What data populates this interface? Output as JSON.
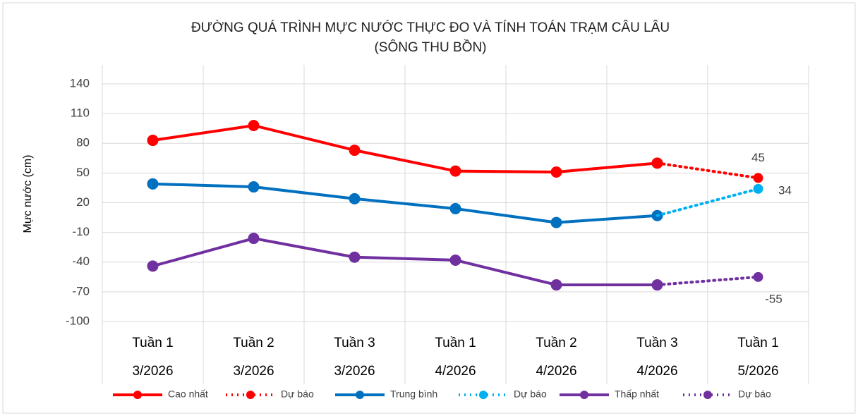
{
  "chart_data": {
    "type": "line",
    "title": "ĐƯỜNG QUÁ TRÌNH MỰC NƯỚC THỰC ĐO VÀ TÍNH TOÁN TRẠM CÂU LÂU",
    "subtitle": "(SÔNG THU BỒN)",
    "y_label": "Mực nước (cm)",
    "categories": [
      [
        "Tuần 1",
        "3/2026"
      ],
      [
        "Tuần 2",
        "3/2026"
      ],
      [
        "Tuần 3",
        "3/2026"
      ],
      [
        "Tuần 1",
        "4/2026"
      ],
      [
        "Tuần 2",
        "4/2026"
      ],
      [
        "Tuần 3",
        "4/2026"
      ],
      [
        "Tuần 1",
        "5/2026"
      ]
    ],
    "ylim": [
      -100,
      140
    ],
    "yticks": [
      -100,
      -70,
      -40,
      -10,
      20,
      50,
      80,
      110,
      140
    ],
    "grid": true,
    "legend": "bottom",
    "series": [
      {
        "name": "Cao nhất",
        "color": "#ff0000",
        "style": "solid",
        "values": [
          83,
          98,
          73,
          52,
          51,
          60,
          null
        ]
      },
      {
        "name": "Dự báo",
        "color": "#ff0000",
        "style": "dotted",
        "data_labels": true,
        "values": [
          null,
          null,
          null,
          null,
          null,
          60,
          45
        ]
      },
      {
        "name": "Trung bình",
        "color": "#0070c0",
        "style": "solid",
        "values": [
          39,
          36,
          24,
          14,
          0,
          7,
          null
        ]
      },
      {
        "name": "Dự báo",
        "color": "#00b0f0",
        "style": "dotted",
        "data_labels": true,
        "values": [
          null,
          null,
          null,
          null,
          null,
          7,
          34
        ]
      },
      {
        "name": "Thấp nhất",
        "color": "#7030a0",
        "style": "solid",
        "values": [
          -44,
          -16,
          -35,
          -38,
          -63,
          -63,
          null
        ]
      },
      {
        "name": "Dự báo",
        "color": "#7030a0",
        "style": "dotted",
        "data_labels": true,
        "values": [
          null,
          null,
          null,
          null,
          null,
          -63,
          -55
        ]
      }
    ]
  }
}
